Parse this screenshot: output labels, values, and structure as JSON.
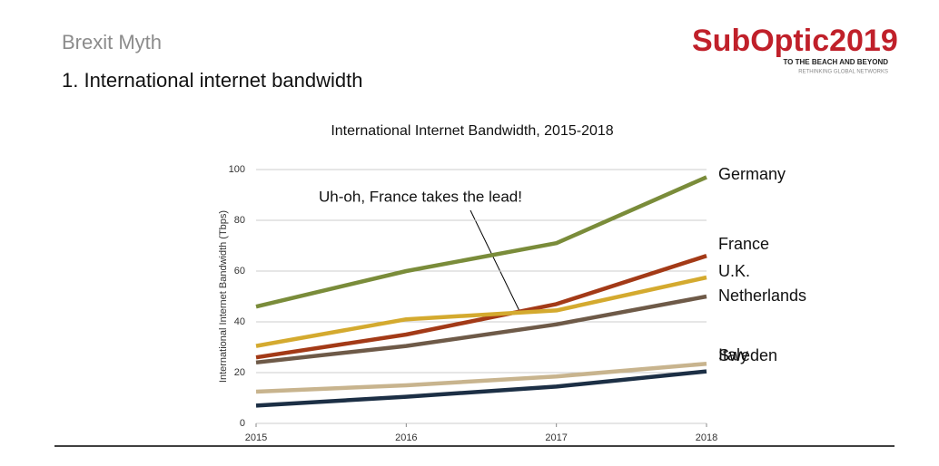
{
  "header": {
    "title": "Brexit Myth",
    "subtitle": "1. International internet bandwidth"
  },
  "logo": {
    "name": "SubOptic2019",
    "tagline": "TO THE BEACH AND BEYOND",
    "motto": "RETHINKING GLOBAL NETWORKS"
  },
  "chart_data": {
    "type": "line",
    "title": "International Internet Bandwidth, 2015-2018",
    "y_label": "International Internet Bandwidth (Tbps)",
    "annotation": "Uh-oh, France takes the lead!",
    "x": [
      2015,
      2016,
      2017,
      2018
    ],
    "xlim": [
      2015,
      2018
    ],
    "xticks": [
      2015,
      2016,
      2017,
      2018
    ],
    "ylim": [
      0,
      100
    ],
    "yticks": [
      0,
      20,
      40,
      60,
      80,
      100
    ],
    "grid": true,
    "series": [
      {
        "name": "Germany",
        "color": "#7a8c3a",
        "values": [
          46,
          60,
          71,
          97
        ]
      },
      {
        "name": "France",
        "color": "#a33a17",
        "values": [
          26,
          35,
          47,
          66
        ]
      },
      {
        "name": "U.K.",
        "color": "#d4aa2f",
        "values": [
          30.5,
          41,
          44.5,
          57.5
        ]
      },
      {
        "name": "Netherlands",
        "color": "#6e5a48",
        "values": [
          24,
          30.5,
          39,
          50
        ]
      },
      {
        "name": "Sweden",
        "color": "#c8b48e",
        "values": [
          12.5,
          15,
          18.5,
          23.5
        ]
      },
      {
        "name": "Italy",
        "color": "#1c2f45",
        "values": [
          7,
          10.5,
          14.5,
          20.5
        ]
      }
    ]
  }
}
